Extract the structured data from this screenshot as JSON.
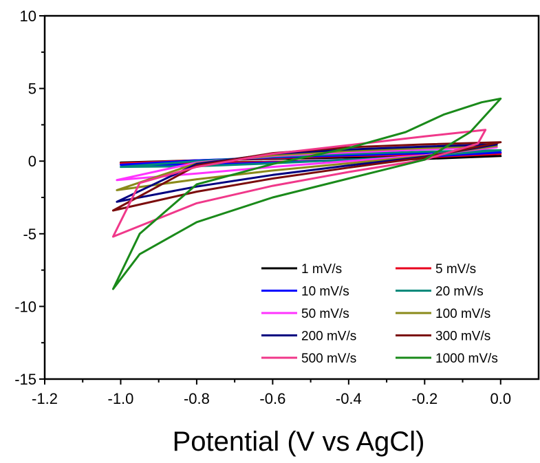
{
  "chart_data": {
    "type": "line",
    "title": "",
    "xlabel": "Potential (V vs AgCl)",
    "ylabel": "",
    "xlim": [
      -1.2,
      0.1
    ],
    "ylim": [
      -15,
      10
    ],
    "xticks": [
      -1.2,
      -1.0,
      -0.8,
      -0.6,
      -0.4,
      -0.2,
      0.0
    ],
    "xtick_labels": [
      "-1.2",
      "-1.0",
      "-0.8",
      "-0.6",
      "-0.4",
      "-0.2",
      "0.0"
    ],
    "yticks": [
      -15,
      -10,
      -5,
      0,
      5,
      10
    ],
    "ytick_labels": [
      "-15",
      "-10",
      "-5",
      "0",
      "5",
      "10"
    ],
    "grid": false,
    "legend_placement": "bottom-right",
    "series": [
      {
        "name": "1 mV/s",
        "color": "#000000",
        "points": [
          [
            -1.0,
            -0.1
          ],
          [
            -0.8,
            0.05
          ],
          [
            -0.6,
            0.15
          ],
          [
            -0.4,
            0.25
          ],
          [
            -0.2,
            0.3
          ],
          [
            0.0,
            0.35
          ],
          [
            -0.2,
            0.15
          ],
          [
            -0.4,
            0.05
          ],
          [
            -0.6,
            -0.05
          ],
          [
            -0.8,
            -0.1
          ],
          [
            -1.0,
            -0.1
          ]
        ]
      },
      {
        "name": "5 mV/s",
        "color": "#e8001c",
        "points": [
          [
            -1.0,
            -0.15
          ],
          [
            -0.8,
            0.05
          ],
          [
            -0.6,
            0.2
          ],
          [
            -0.4,
            0.35
          ],
          [
            -0.2,
            0.45
          ],
          [
            0.0,
            0.5
          ],
          [
            -0.2,
            0.25
          ],
          [
            -0.4,
            0.1
          ],
          [
            -0.6,
            -0.05
          ],
          [
            -0.8,
            -0.15
          ],
          [
            -1.0,
            -0.15
          ]
        ]
      },
      {
        "name": "10 mV/s",
        "color": "#0000ff",
        "points": [
          [
            -1.0,
            -0.25
          ],
          [
            -0.8,
            0.05
          ],
          [
            -0.6,
            0.25
          ],
          [
            -0.4,
            0.4
          ],
          [
            -0.2,
            0.55
          ],
          [
            0.0,
            0.6
          ],
          [
            -0.2,
            0.3
          ],
          [
            -0.4,
            0.1
          ],
          [
            -0.6,
            -0.1
          ],
          [
            -0.8,
            -0.25
          ],
          [
            -1.0,
            -0.25
          ]
        ]
      },
      {
        "name": "20 mV/s",
        "color": "#00897b",
        "points": [
          [
            -1.0,
            -0.4
          ],
          [
            -0.8,
            0.0
          ],
          [
            -0.6,
            0.3
          ],
          [
            -0.4,
            0.5
          ],
          [
            -0.2,
            0.65
          ],
          [
            0.0,
            0.75
          ],
          [
            -0.2,
            0.35
          ],
          [
            -0.4,
            0.1
          ],
          [
            -0.6,
            -0.15
          ],
          [
            -0.8,
            -0.35
          ],
          [
            -1.0,
            -0.4
          ]
        ]
      },
      {
        "name": "50 mV/s",
        "color": "#ff33ff",
        "points": [
          [
            -1.01,
            -1.3
          ],
          [
            -0.8,
            -0.1
          ],
          [
            -0.6,
            0.35
          ],
          [
            -0.4,
            0.6
          ],
          [
            -0.2,
            0.8
          ],
          [
            -0.01,
            0.95
          ],
          [
            -0.2,
            0.4
          ],
          [
            -0.4,
            0.0
          ],
          [
            -0.6,
            -0.4
          ],
          [
            -0.8,
            -0.85
          ],
          [
            -1.01,
            -1.3
          ]
        ]
      },
      {
        "name": "100 mV/s",
        "color": "#8a8a1a",
        "points": [
          [
            -1.01,
            -2.0
          ],
          [
            -0.8,
            -0.15
          ],
          [
            -0.6,
            0.4
          ],
          [
            -0.4,
            0.7
          ],
          [
            -0.2,
            0.9
          ],
          [
            -0.01,
            1.05
          ],
          [
            -0.2,
            0.35
          ],
          [
            -0.4,
            -0.15
          ],
          [
            -0.6,
            -0.65
          ],
          [
            -0.8,
            -1.25
          ],
          [
            -1.01,
            -2.0
          ]
        ]
      },
      {
        "name": "200 mV/s",
        "color": "#000080",
        "points": [
          [
            -1.01,
            -2.8
          ],
          [
            -0.8,
            -0.2
          ],
          [
            -0.6,
            0.5
          ],
          [
            -0.4,
            0.8
          ],
          [
            -0.2,
            1.0
          ],
          [
            -0.01,
            1.15
          ],
          [
            -0.2,
            0.3
          ],
          [
            -0.4,
            -0.3
          ],
          [
            -0.6,
            -0.95
          ],
          [
            -0.8,
            -1.75
          ],
          [
            -1.01,
            -2.8
          ]
        ]
      },
      {
        "name": "300 mV/s",
        "color": "#7b0c0c",
        "points": [
          [
            -1.02,
            -3.4
          ],
          [
            -0.8,
            -0.3
          ],
          [
            -0.6,
            0.55
          ],
          [
            -0.4,
            0.95
          ],
          [
            -0.2,
            1.15
          ],
          [
            0.0,
            1.3
          ],
          [
            -0.2,
            0.25
          ],
          [
            -0.4,
            -0.45
          ],
          [
            -0.6,
            -1.2
          ],
          [
            -0.8,
            -2.1
          ],
          [
            -1.02,
            -3.4
          ]
        ]
      },
      {
        "name": "500 mV/s",
        "color": "#f0388a",
        "points": [
          [
            -1.02,
            -5.2
          ],
          [
            -0.95,
            -1.5
          ],
          [
            -0.8,
            -0.4
          ],
          [
            -0.6,
            0.5
          ],
          [
            -0.4,
            1.1
          ],
          [
            -0.2,
            1.7
          ],
          [
            -0.04,
            2.15
          ],
          [
            -0.06,
            1.2
          ],
          [
            -0.2,
            0.1
          ],
          [
            -0.4,
            -0.75
          ],
          [
            -0.6,
            -1.7
          ],
          [
            -0.8,
            -2.9
          ],
          [
            -1.02,
            -5.2
          ]
        ]
      },
      {
        "name": "1000 mV/s",
        "color": "#1a8a1a",
        "points": [
          [
            -1.02,
            -8.8
          ],
          [
            -0.95,
            -5.0
          ],
          [
            -0.8,
            -1.6
          ],
          [
            -0.6,
            -0.2
          ],
          [
            -0.4,
            0.9
          ],
          [
            -0.25,
            2.0
          ],
          [
            -0.15,
            3.2
          ],
          [
            -0.05,
            4.05
          ],
          [
            0.0,
            4.3
          ],
          [
            -0.08,
            2.0
          ],
          [
            -0.2,
            0.1
          ],
          [
            -0.4,
            -1.2
          ],
          [
            -0.6,
            -2.5
          ],
          [
            -0.8,
            -4.2
          ],
          [
            -0.95,
            -6.4
          ],
          [
            -1.02,
            -8.8
          ]
        ]
      }
    ]
  }
}
